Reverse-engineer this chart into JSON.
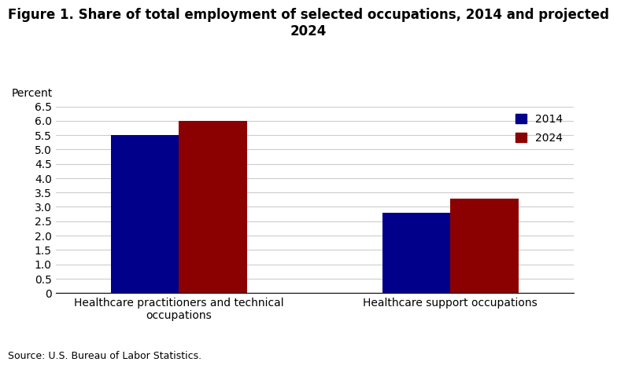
{
  "title_line1": "Figure 1. Share of total employment of selected occupations, 2014 and projected",
  "title_line2": "2024",
  "ylabel": "Percent",
  "source": "Source: U.S. Bureau of Labor Statistics.",
  "categories": [
    "Healthcare practitioners and technical\noccupations",
    "Healthcare support occupations"
  ],
  "values_2014": [
    5.5,
    2.8
  ],
  "values_2024": [
    6.0,
    3.3
  ],
  "color_2014": "#00008B",
  "color_2024": "#8B0000",
  "ylim": [
    0,
    6.5
  ],
  "yticks": [
    0,
    0.5,
    1.0,
    1.5,
    2.0,
    2.5,
    3.0,
    3.5,
    4.0,
    4.5,
    5.0,
    5.5,
    6.0,
    6.5
  ],
  "ytick_labels": [
    "0",
    "0.5",
    "1.0",
    "1.5",
    "2.0",
    "2.5",
    "3.0",
    "3.5",
    "4.0",
    "4.5",
    "5.0",
    "5.5",
    "6.0",
    "6.5"
  ],
  "legend_labels": [
    "2014",
    "2024"
  ],
  "bar_width": 0.55,
  "title_fontsize": 12,
  "axis_fontsize": 10,
  "tick_fontsize": 10,
  "legend_fontsize": 10,
  "source_fontsize": 9,
  "background_color": "#ffffff"
}
